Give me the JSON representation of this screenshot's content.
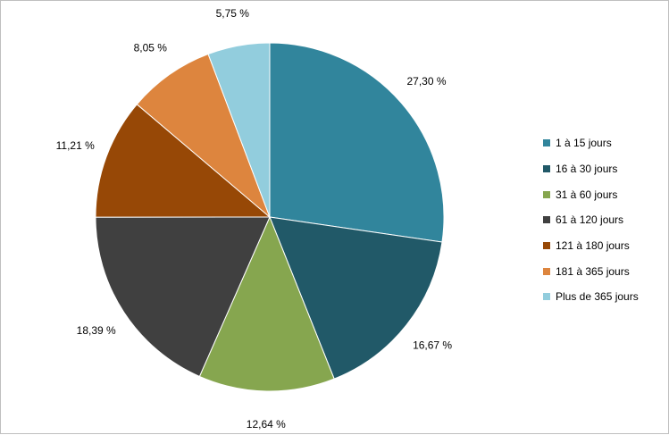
{
  "chart_data": {
    "type": "pie",
    "start_angle_deg": 0,
    "direction": "clockwise",
    "categories": [
      "1 à 15 jours",
      "16 à 30 jours",
      "31 à 60 jours",
      "61 à 120 jours",
      "121 à 180 jours",
      "181 à 365 jours",
      "Plus de 365 jours"
    ],
    "values": [
      27.3,
      16.67,
      12.64,
      18.39,
      11.21,
      8.05,
      5.75
    ],
    "data_labels": [
      "27,30 %",
      "16,67 %",
      "12,64 %",
      "18,39 %",
      "11,21 %",
      "8,05 %",
      "5,75 %"
    ],
    "colors": [
      "#31859c",
      "#215968",
      "#86a64f",
      "#404040",
      "#974806",
      "#dd853e",
      "#92cddd"
    ],
    "legend_position": "right"
  }
}
